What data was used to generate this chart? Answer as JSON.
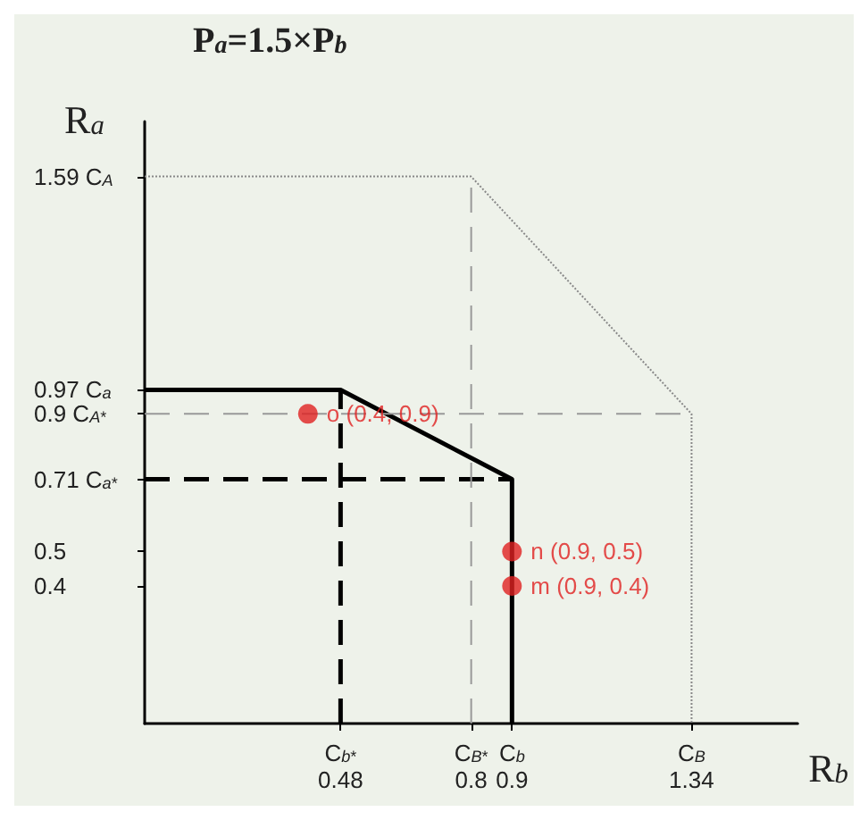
{
  "chart_data": {
    "type": "line",
    "title": "P$_{a}$=1.5×P$_{b}$",
    "xlabel": "R$_{b}$",
    "ylabel": "R$_{a}$",
    "grid": false,
    "marker": "none",
    "xlim": [
      0,
      1.6
    ],
    "ylim": [
      0,
      1.75
    ],
    "xticks": [
      {
        "value": 0.48,
        "label": "C$_{b}$$^{*}$\n0.48"
      },
      {
        "value": 0.8,
        "label": "C$_{B}$$^{*}$\n0.8"
      },
      {
        "value": 0.9,
        "label": "C$_{b}$\n0.9"
      },
      {
        "value": 1.34,
        "label": "C$_{B}$\n1.34"
      }
    ],
    "yticks": [
      0.4,
      0.5,
      {
        "value": 0.71,
        "label": "0.71 C$_{a}$$^{*}$"
      },
      {
        "value": 0.9,
        "label": "0.9 C$_{A}$$^{*}$"
      },
      {
        "value": 0.97,
        "label": "0.97 C$_{a}$"
      },
      {
        "value": 1.59,
        "label": "1.59 C$_{A}$"
      }
    ],
    "series": [
      {
        "color": "#000000",
        "line_style": "solid",
        "x": [
          0,
          0.48,
          0.9,
          0.9
        ],
        "values": [
          0.97,
          0.97,
          0.71,
          0
        ]
      },
      {
        "color": "#000000",
        "line_style": "dashed",
        "x": [
          0,
          0.9
        ],
        "values": [
          0.71,
          0.71
        ]
      },
      {
        "color": "#000000",
        "line_style": "dashed",
        "x": [
          0.48,
          0.48
        ],
        "values": [
          0,
          0.97
        ]
      },
      {
        "color": "#888888",
        "line_style": "dotted",
        "x": [
          0,
          0.8,
          1.34,
          1.34
        ],
        "values": [
          1.59,
          1.59,
          0.9,
          0
        ]
      },
      {
        "color": "#999999",
        "line_style": "dashed",
        "x": [
          0.8,
          0.8
        ],
        "values": [
          0,
          1.59
        ]
      },
      {
        "color": "#999999",
        "line_style": "dashed",
        "x": [
          0,
          1.34
        ],
        "values": [
          0.9,
          0.9
        ]
      },
      {
        "type": "scatter",
        "color": "#e02020",
        "marker": "circle",
        "x": [
          0.4,
          0.9,
          0.9
        ],
        "values": [
          0.9,
          0.5,
          0.4
        ],
        "value_labels": [
          "o (0.4, 0.9)",
          "n (0.9, 0.5)",
          "m (0.9, 0.4)"
        ]
      }
    ]
  }
}
